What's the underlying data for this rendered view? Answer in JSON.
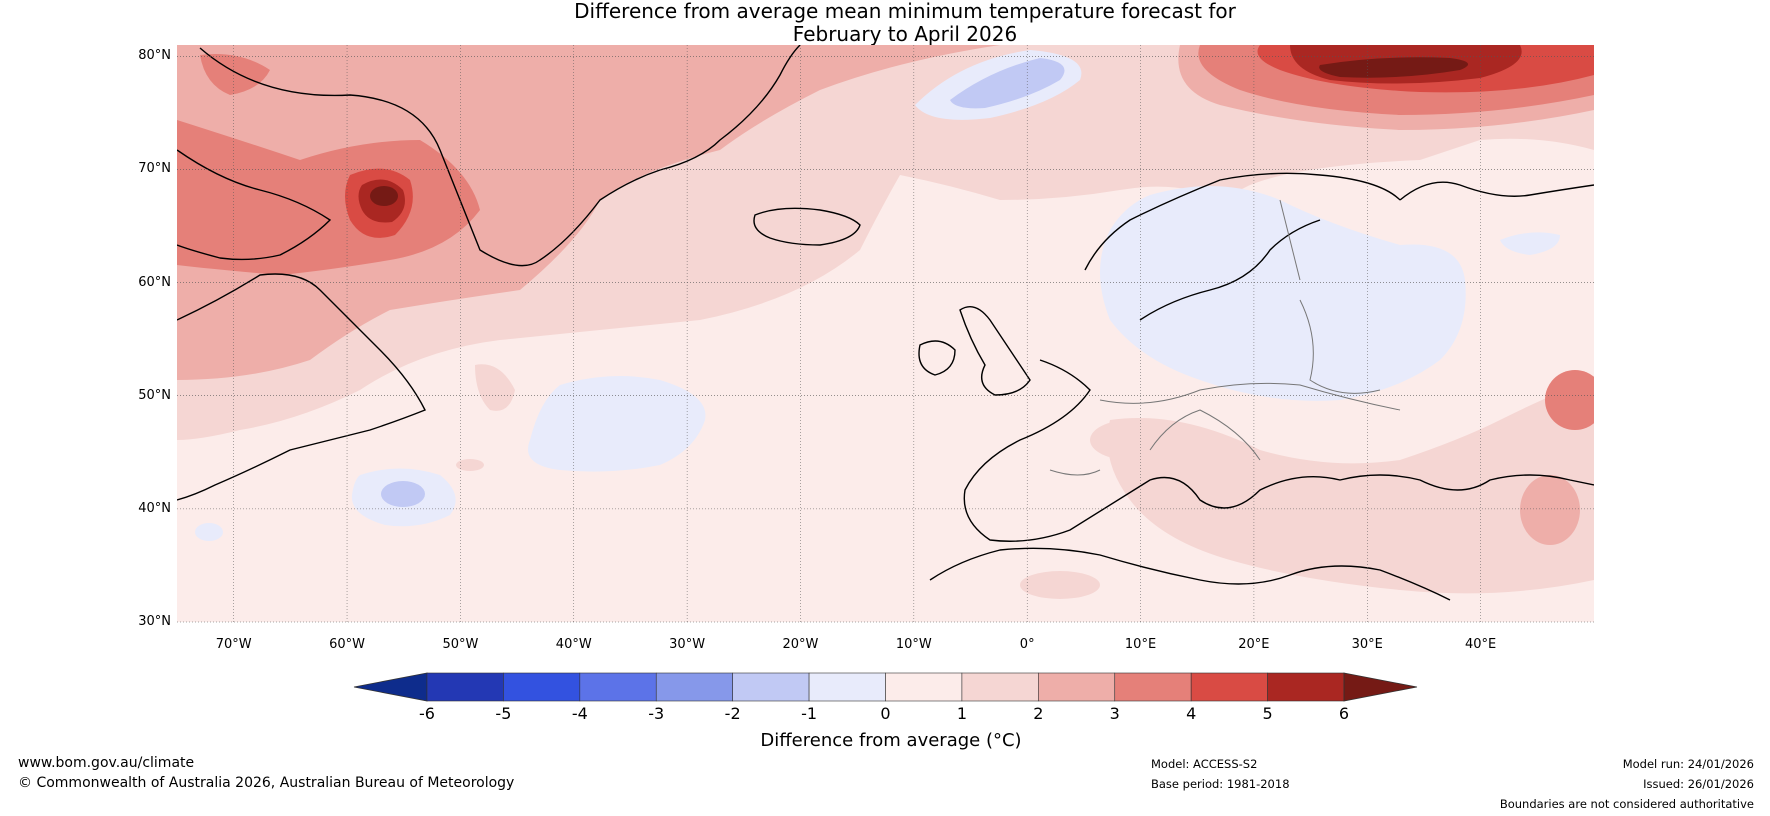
{
  "title": {
    "line1": "Difference from average mean minimum temperature forecast for",
    "line2": "February to April 2026"
  },
  "map": {
    "region": "North Atlantic and Europe",
    "lat_ticks": [
      "80°N",
      "70°N",
      "60°N",
      "50°N",
      "40°N",
      "30°N"
    ],
    "lon_ticks": [
      "70°W",
      "60°W",
      "50°W",
      "40°W",
      "30°W",
      "20°W",
      "10°W",
      "0°",
      "10°E",
      "20°E",
      "30°E",
      "40°E"
    ],
    "lat_values": [
      80,
      70,
      60,
      50,
      40,
      30
    ],
    "lon_values": [
      -70,
      -60,
      -50,
      -40,
      -30,
      -20,
      -10,
      0,
      10,
      20,
      30,
      40
    ],
    "extent": {
      "lon": [
        -75,
        50
      ],
      "lat": [
        30,
        81
      ]
    }
  },
  "colorbar": {
    "ticks": [
      "-6",
      "-5",
      "-4",
      "-3",
      "-2",
      "-1",
      "0",
      "1",
      "2",
      "3",
      "4",
      "5",
      "6"
    ],
    "colors": [
      "#0e2c8c",
      "#2338b4",
      "#3352e0",
      "#5c73e8",
      "#8698ea",
      "#c1c9f4",
      "#e8ebfb",
      "#fcecea",
      "#f5d6d3",
      "#eeaea9",
      "#e58079",
      "#d94b44",
      "#aa2722",
      "#751a15"
    ],
    "label": "Difference from average (°C)"
  },
  "footer": {
    "website": "www.bom.gov.au/climate",
    "copyright": "© Commonwealth of Australia 2026, Australian Bureau of Meteorology",
    "model": "Model: ACCESS-S2",
    "base_period": "Base period: 1981-2018",
    "model_run": "Model run: 24/01/2026",
    "issued": "Issued: 26/01/2026",
    "disclaimer": "Boundaries are not considered authoritative"
  }
}
